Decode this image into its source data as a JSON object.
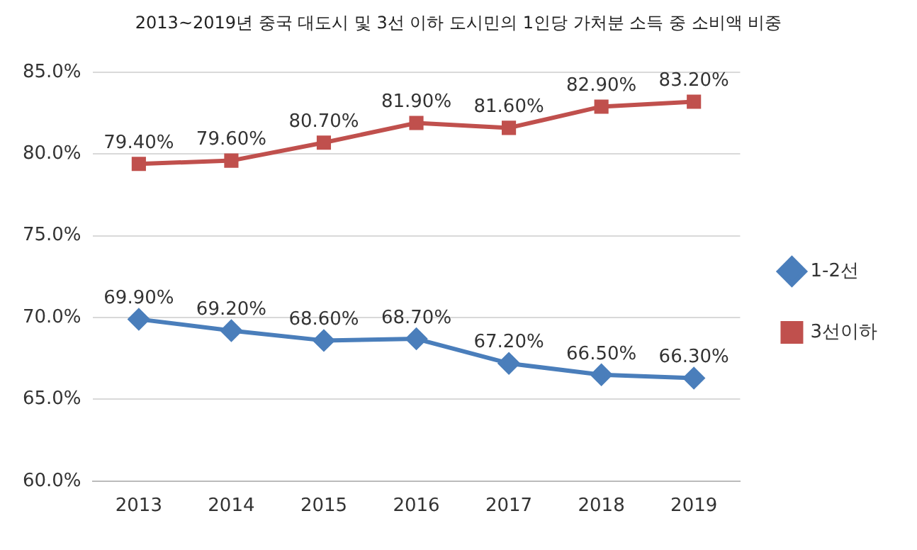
{
  "chart_data": {
    "type": "line",
    "title": "2013~2019년 중국 대도시 및 3선 이하 도시민의 1인당 가처분 소득 중 소비액 비중",
    "categories": [
      "2013",
      "2014",
      "2015",
      "2016",
      "2017",
      "2018",
      "2019"
    ],
    "series": [
      {
        "name": "1-2선",
        "color": "#4a7ebb",
        "marker": "diamond",
        "values": [
          69.9,
          69.2,
          68.6,
          68.7,
          67.2,
          66.5,
          66.3
        ],
        "value_labels": [
          "69.90%",
          "69.20%",
          "68.60%",
          "68.70%",
          "67.20%",
          "66.50%",
          "66.30%"
        ]
      },
      {
        "name": "3선이하",
        "color": "#c0504d",
        "marker": "square",
        "values": [
          79.4,
          79.6,
          80.7,
          81.9,
          81.6,
          82.9,
          83.2
        ],
        "value_labels": [
          "79.40%",
          "79.60%",
          "80.70%",
          "81.90%",
          "81.60%",
          "82.90%",
          "83.20%"
        ]
      }
    ],
    "ylim": [
      60,
      85
    ],
    "yticks": [
      {
        "value": 60,
        "label": "60.0%"
      },
      {
        "value": 65,
        "label": "65.0%"
      },
      {
        "value": 70,
        "label": "70.0%"
      },
      {
        "value": 75,
        "label": "75.0%"
      },
      {
        "value": 80,
        "label": "80.0%"
      },
      {
        "value": 85,
        "label": "85.0%"
      }
    ],
    "grid": "y",
    "legend": "right",
    "line_style": "solid"
  }
}
